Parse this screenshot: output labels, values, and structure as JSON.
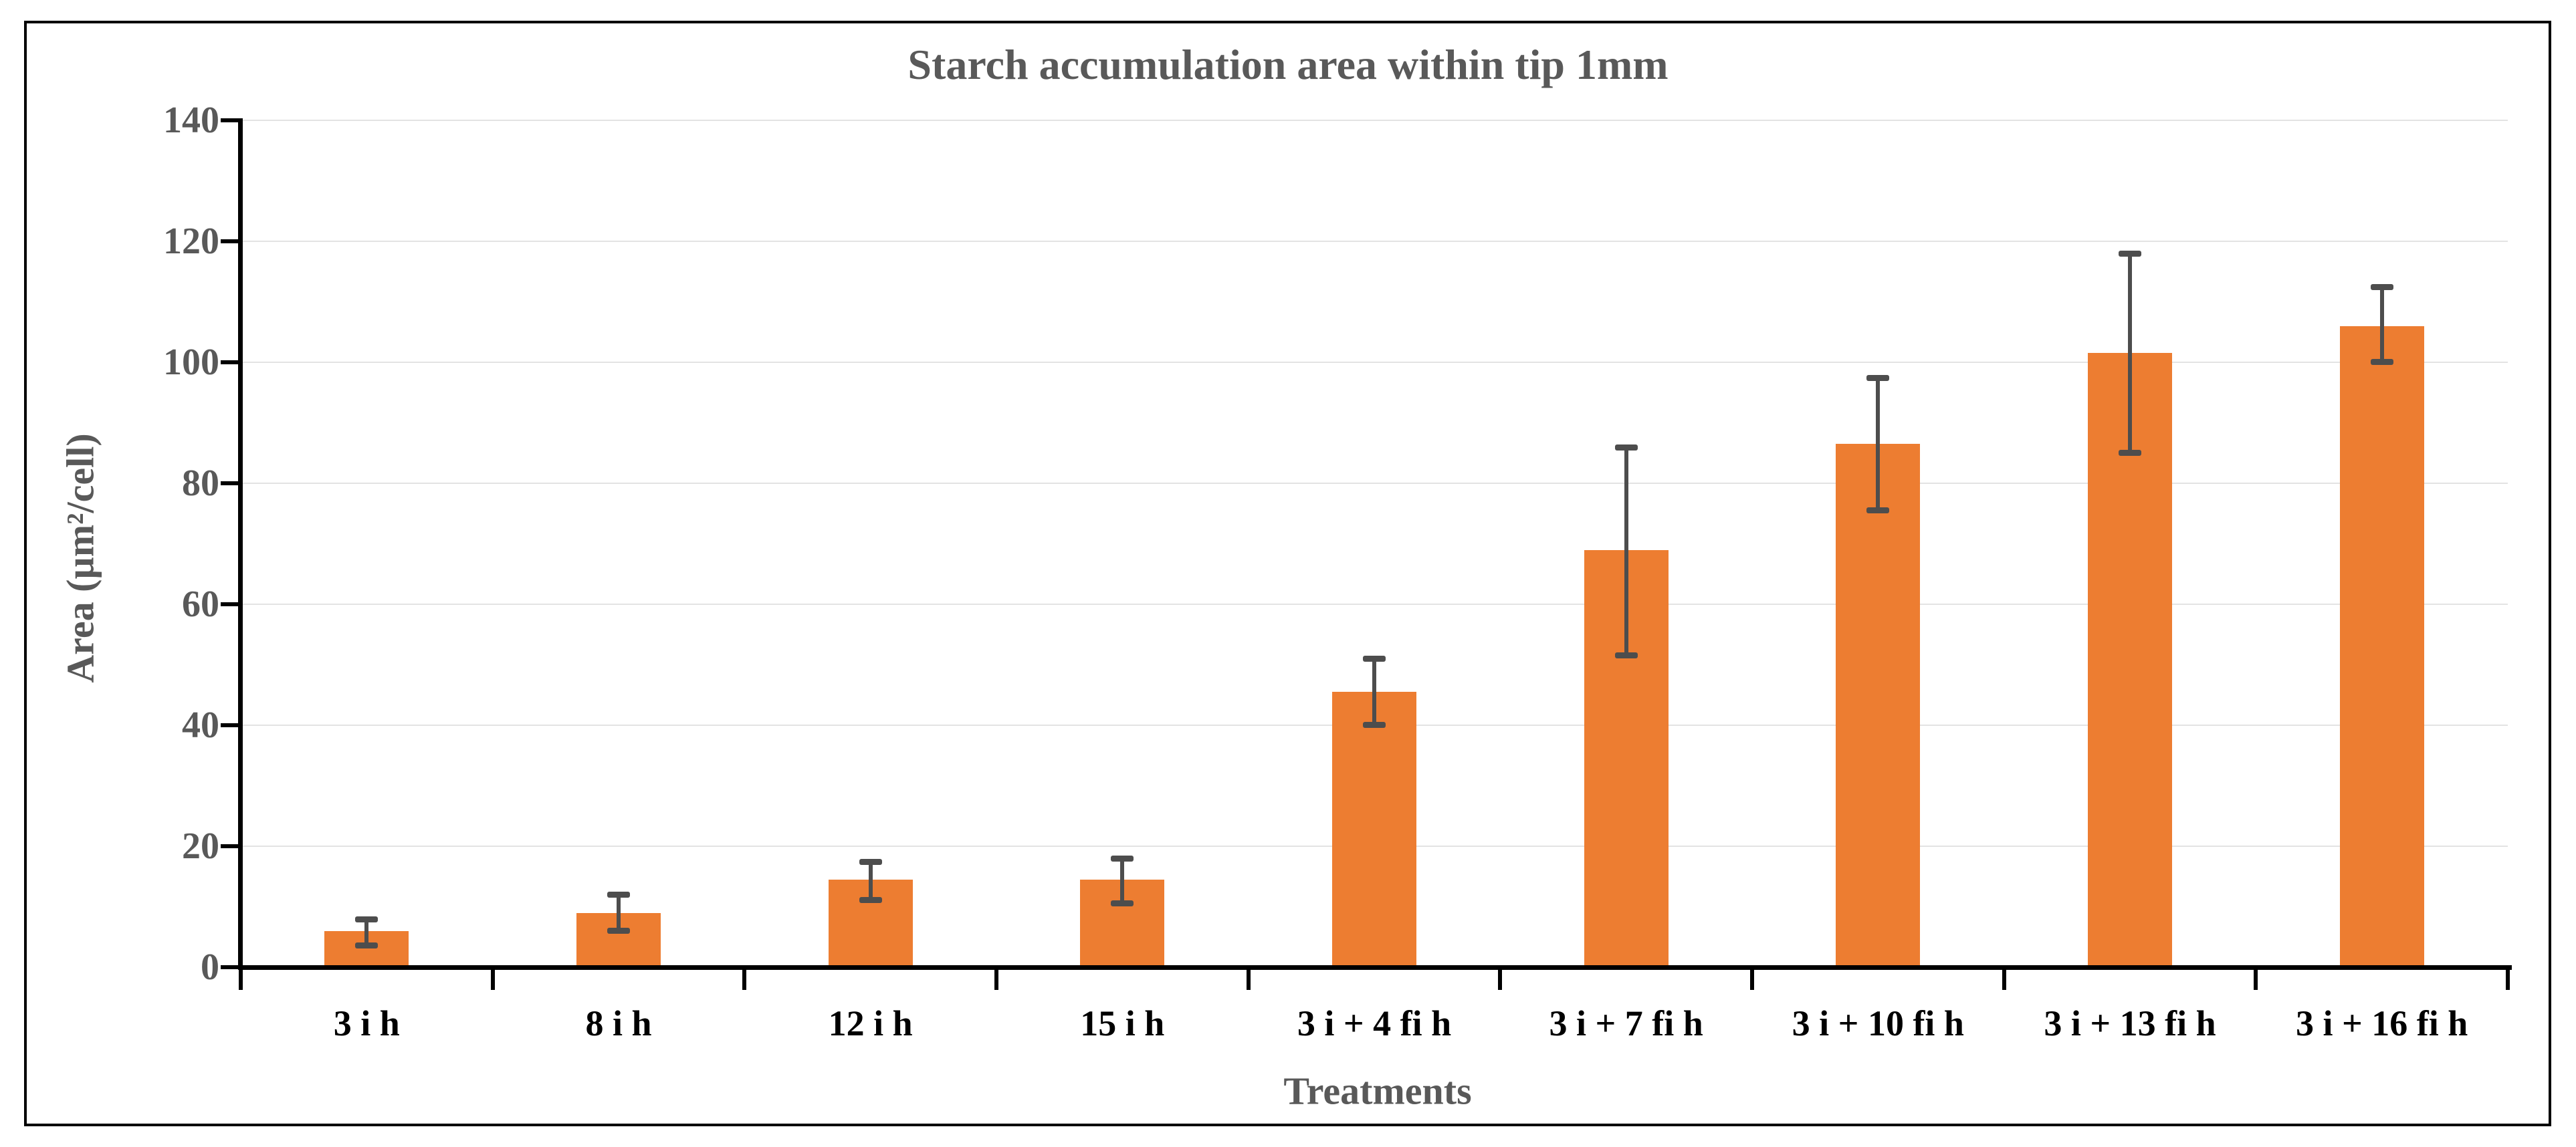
{
  "chart": {
    "title": "Starch accumulation area within tip 1mm",
    "x_axis_title": "Treatments",
    "y_axis_title": "Area (µm²/cell)"
  },
  "chart_data": {
    "type": "bar",
    "title": "Starch accumulation area within tip 1mm",
    "xlabel": "Treatments",
    "ylabel": "Area (µm²/cell)",
    "categories": [
      "3 i h",
      "8 i h",
      "12 i h",
      "15 i h",
      "3 i + 4 fi h",
      "3 i + 7 fi h",
      "3 i + 10 fi h",
      "3 i + 13 fi h",
      "3 i + 16 fi h"
    ],
    "values": [
      6,
      9,
      14.5,
      14.5,
      45.5,
      69,
      86.5,
      101.5,
      106
    ],
    "error_plus": [
      2,
      3,
      3,
      3.5,
      5.5,
      17,
      11,
      16.5,
      6.5
    ],
    "error_minus": [
      2.5,
      3,
      3.5,
      4,
      5.5,
      17.5,
      11,
      16.5,
      6
    ],
    "ylim": [
      0,
      140
    ],
    "ytick_labels": [
      "0",
      "20",
      "40",
      "60",
      "80",
      "100",
      "120",
      "140"
    ],
    "grid": true,
    "legend": false,
    "bar_color": "#ED7D31",
    "error_bar_color": "#4D4D4D",
    "axis_color": "#000000",
    "gridline_color": "#E3E3E3",
    "title_color": "#595959",
    "x_tick_label_color": "#000000",
    "y_tick_label_color": "#595959"
  }
}
